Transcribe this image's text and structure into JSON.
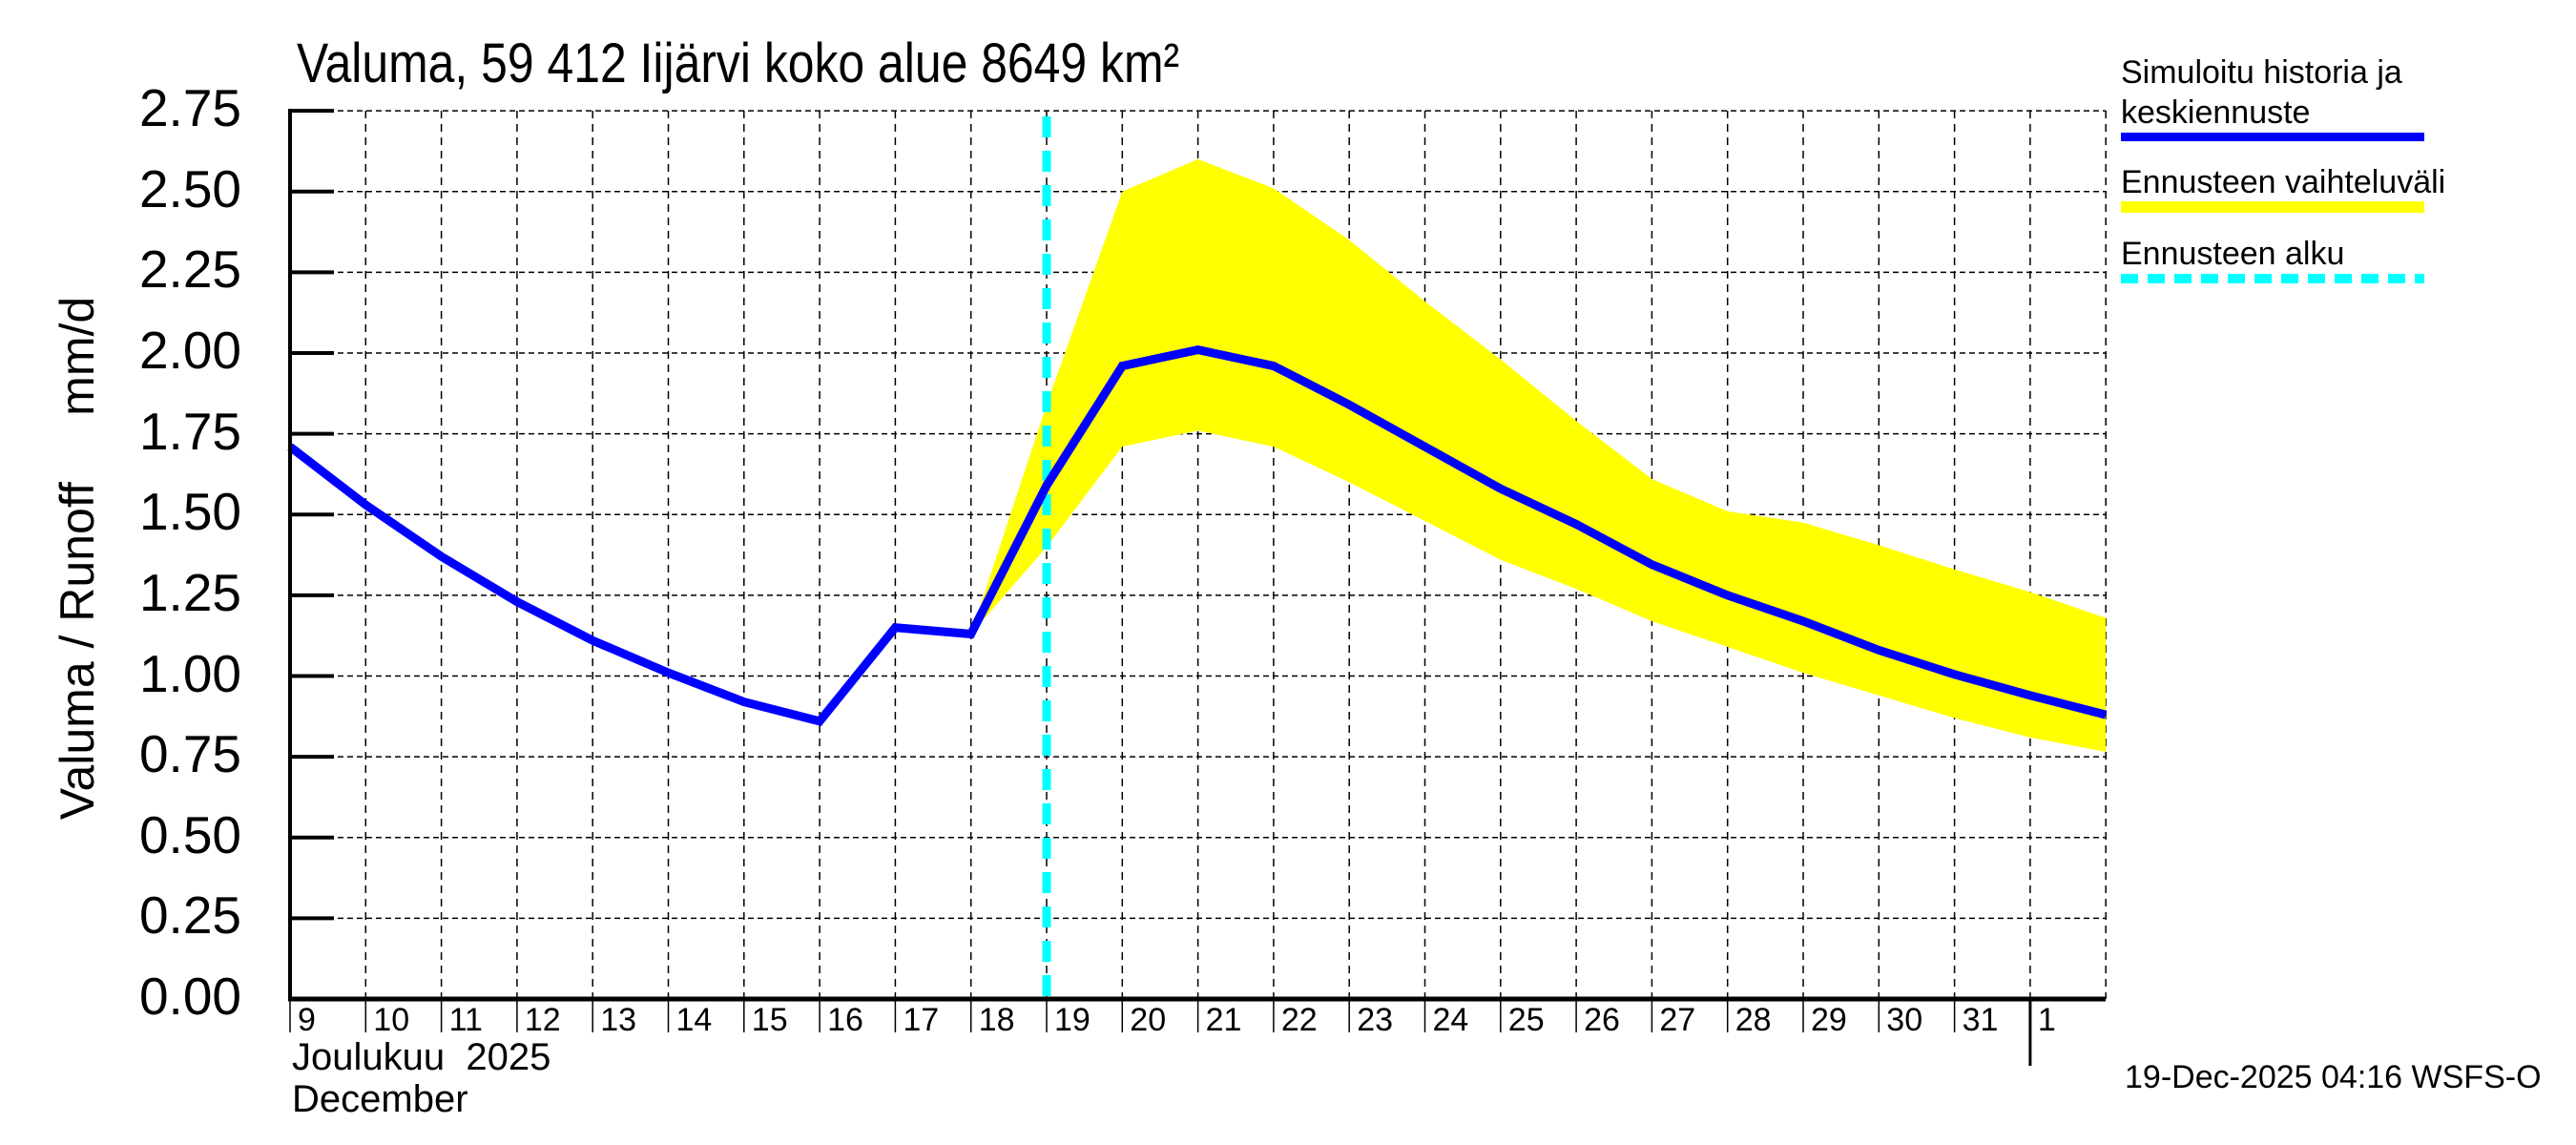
{
  "chart": {
    "title": "Valuma, 59 412 Iijärvi koko alue 8649 km²",
    "ylabel": "Valuma / Runoff     mm/d",
    "xlabel_line1": "Joulukuu  2025",
    "xlabel_line2": "December",
    "timestamp": "19-Dec-2025 04:16 WSFS-O"
  },
  "legend": {
    "items": [
      {
        "label_line1": "Simuloitu historia ja",
        "label_line2": "keskiennuste",
        "color": "#0000ff",
        "style": "solid"
      },
      {
        "label": "Ennusteen vaihteluväli",
        "color": "#ffff00",
        "style": "band"
      },
      {
        "label": "Ennusteen alku",
        "color": "#00ffff",
        "style": "dashed"
      }
    ]
  },
  "colors": {
    "median": "#0000ff",
    "band": "#ffff00",
    "forecast_start": "#00ffff",
    "grid": "#000000",
    "axis": "#000000"
  },
  "axes": {
    "y_ticks": [
      "0.00",
      "0.25",
      "0.50",
      "0.75",
      "1.00",
      "1.25",
      "1.50",
      "1.75",
      "2.00",
      "2.25",
      "2.50",
      "2.75"
    ],
    "x_ticks": [
      "9",
      "10",
      "11",
      "12",
      "13",
      "14",
      "15",
      "16",
      "17",
      "18",
      "19",
      "20",
      "21",
      "22",
      "23",
      "24",
      "25",
      "26",
      "27",
      "28",
      "29",
      "30",
      "31",
      "1"
    ]
  },
  "chart_data": {
    "type": "line",
    "title": "Valuma, 59 412 Iijärvi koko alue 8649 km²",
    "xlabel": "Joulukuu 2025 / December",
    "ylabel": "Valuma / Runoff mm/d",
    "ylim": [
      0,
      2.75
    ],
    "grid": true,
    "legend_position": "right",
    "forecast_start": "19",
    "x": [
      "9",
      "10",
      "11",
      "12",
      "13",
      "14",
      "15",
      "16",
      "17",
      "18",
      "19",
      "20",
      "21",
      "22",
      "23",
      "24",
      "25",
      "26",
      "27",
      "28",
      "29",
      "30",
      "31",
      "1",
      "2"
    ],
    "series": [
      {
        "name": "Simuloitu historia ja keskiennuste",
        "type": "line",
        "values": [
          1.71,
          1.53,
          1.37,
          1.23,
          1.11,
          1.01,
          0.92,
          0.86,
          1.15,
          1.13,
          1.59,
          1.96,
          2.01,
          1.96,
          1.84,
          1.71,
          1.58,
          1.47,
          1.345,
          1.25,
          1.17,
          1.08,
          1.005,
          0.94,
          0.88
        ]
      },
      {
        "name": "Ennusteen vaihteluväli (upper)",
        "type": "area",
        "start_index": 9,
        "values": [
          1.13,
          1.84,
          2.5,
          2.6,
          2.51,
          2.35,
          2.16,
          1.98,
          1.79,
          1.61,
          1.51,
          1.475,
          1.405,
          1.33,
          1.26,
          1.18
        ]
      },
      {
        "name": "Ennusteen vaihteluväli (lower)",
        "type": "area",
        "start_index": 9,
        "values": [
          1.13,
          1.4,
          1.71,
          1.76,
          1.71,
          1.6,
          1.48,
          1.36,
          1.27,
          1.17,
          1.09,
          1.01,
          0.94,
          0.87,
          0.81,
          0.765
        ]
      }
    ]
  }
}
